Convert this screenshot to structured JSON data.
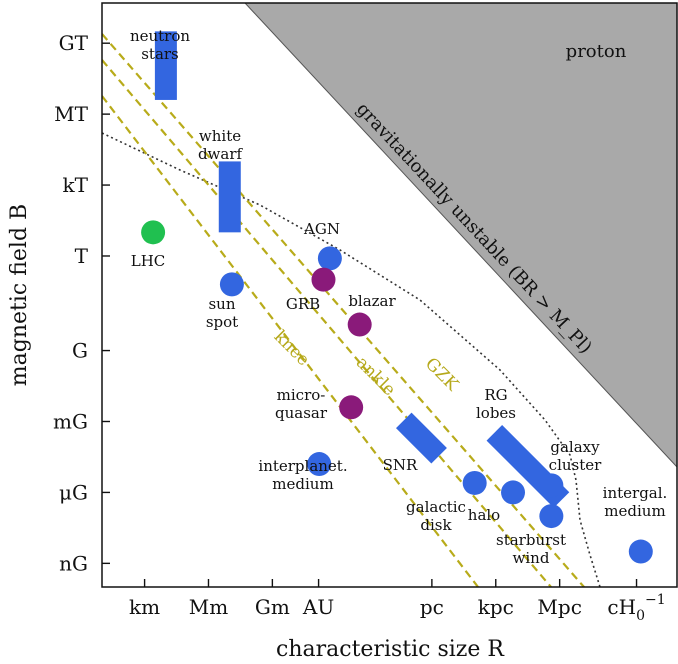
{
  "chart_data": {
    "type": "scatter",
    "title": "",
    "xlabel": "characteristic size R",
    "ylabel": "magnetic field B",
    "x_ticks": [
      "km",
      "Mm",
      "Gm",
      "AU",
      "pc",
      "kpc",
      "Mpc",
      "cH0^-1"
    ],
    "x_tick_values_log10_m": [
      3,
      6,
      9,
      11.17,
      16.49,
      19.49,
      22.49,
      26.1
    ],
    "y_ticks": [
      "GT",
      "MT",
      "kT",
      "T",
      "G",
      "mG",
      "μG",
      "nG"
    ],
    "y_tick_values_log10_T": [
      9,
      6,
      3,
      0,
      -4,
      -7,
      -10,
      -13
    ],
    "xlim_log10_m": [
      1,
      28
    ],
    "ylim_log10_T": [
      -14,
      10.7
    ],
    "regions": [
      {
        "name": "proton",
        "label": "proton"
      },
      {
        "name": "gravitationally-unstable",
        "label": "gravitationally unstable (BR > M_Pl)"
      }
    ],
    "lines": [
      {
        "name": "knee",
        "label": "knee",
        "style": "dashed",
        "color": "#b8ab1a",
        "log_BR": 8.5
      },
      {
        "name": "ankle",
        "label": "ankle",
        "style": "dashed",
        "color": "#b8ab1a",
        "log_BR": 11
      },
      {
        "name": "gzk",
        "label": "GZK",
        "style": "dashed",
        "color": "#b8ab1a",
        "log_BR": 12
      },
      {
        "name": "dotted-boundary",
        "label": "",
        "style": "dotted",
        "color": "#333333"
      }
    ],
    "sources": [
      {
        "label_lines": [
          "LHC"
        ],
        "x": 3.4,
        "y": 1.0,
        "color": "#20c050",
        "shape": "circle"
      },
      {
        "label_lines": [
          "neutron",
          "stars"
        ],
        "x": 4.0,
        "y": [
          6.6,
          9.5
        ],
        "color": "#3366e0",
        "shape": "bar"
      },
      {
        "label_lines": [
          "white",
          "dwarf"
        ],
        "x": 7.0,
        "y": [
          1.0,
          4.0
        ],
        "color": "#3366e0",
        "shape": "bar"
      },
      {
        "label_lines": [
          "sun",
          "spot"
        ],
        "x": 7.1,
        "y": -1.2,
        "color": "#3366e0",
        "shape": "circle"
      },
      {
        "label_lines": [
          "AGN"
        ],
        "x": 11.7,
        "y": -0.1,
        "color": "#3366e0",
        "shape": "circle"
      },
      {
        "label_lines": [
          "GRB"
        ],
        "x": 11.4,
        "y": -1.0,
        "color": "#8a1a7a",
        "shape": "circle"
      },
      {
        "label_lines": [
          "blazar"
        ],
        "x": 13.1,
        "y": -2.9,
        "color": "#8a1a7a",
        "shape": "circle"
      },
      {
        "label_lines": [
          "micro-",
          "quasar"
        ],
        "x": 12.7,
        "y": -6.4,
        "color": "#8a1a7a",
        "shape": "circle"
      },
      {
        "label_lines": [
          "interplanet.",
          "medium"
        ],
        "x": 11.2,
        "y": -8.8,
        "color": "#3366e0",
        "shape": "circle"
      },
      {
        "label_lines": [
          "SNR"
        ],
        "x": 16.0,
        "y": -7.7,
        "color": "#3366e0",
        "shape": "bar"
      },
      {
        "label_lines": [
          "galactic",
          "disk"
        ],
        "x": 18.5,
        "y": -9.6,
        "color": "#3366e0",
        "shape": "circle"
      },
      {
        "label_lines": [
          "RG",
          "lobes"
        ],
        "x": 21.0,
        "y": -8.9,
        "color": "#3366e0",
        "shape": "bar"
      },
      {
        "label_lines": [
          "halo"
        ],
        "x": 20.3,
        "y": -10.0,
        "color": "#3366e0",
        "shape": "circle"
      },
      {
        "label_lines": [
          "galaxy",
          "cluster"
        ],
        "x": 22.1,
        "y": -9.7,
        "color": "#3366e0",
        "shape": "circle"
      },
      {
        "label_lines": [
          "starburst",
          "wind"
        ],
        "x": 22.1,
        "y": -11.0,
        "color": "#3366e0",
        "shape": "circle"
      },
      {
        "label_lines": [
          "intergal.",
          "medium"
        ],
        "x": 26.3,
        "y": -12.5,
        "color": "#3366e0",
        "shape": "circle"
      }
    ],
    "grid": false,
    "legend": "none"
  }
}
